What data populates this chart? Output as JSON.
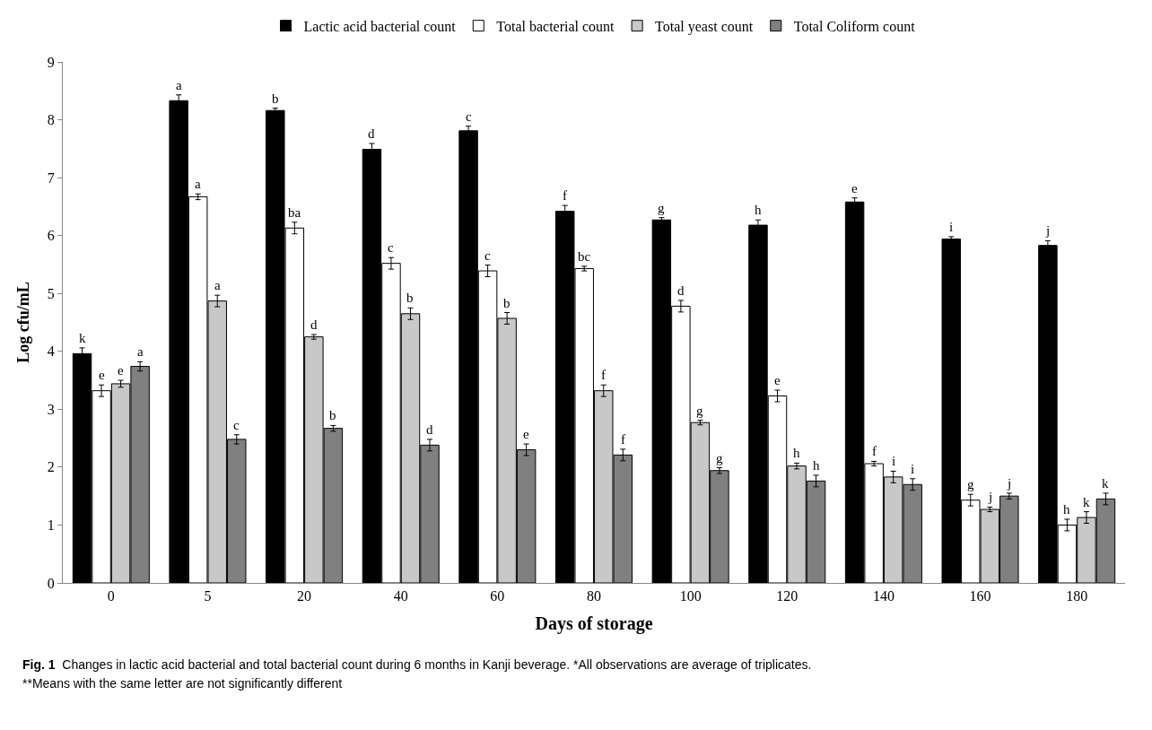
{
  "chart_data": {
    "type": "bar",
    "xlabel": "Days of storage",
    "ylabel": "Log cfu/mL",
    "categories": [
      "0",
      "5",
      "20",
      "40",
      "60",
      "80",
      "100",
      "120",
      "140",
      "160",
      "180"
    ],
    "series": [
      {
        "name": "Lactic acid bacterial count",
        "color": "#000000",
        "values": [
          3.96,
          8.33,
          8.16,
          7.49,
          7.81,
          6.42,
          6.27,
          6.18,
          6.58,
          5.94,
          5.83
        ],
        "errors": [
          0.1,
          0.1,
          0.04,
          0.1,
          0.08,
          0.1,
          0.04,
          0.09,
          0.07,
          0.04,
          0.08
        ],
        "value_labels": [
          "k",
          "a",
          "b",
          "d",
          "c",
          "f",
          "g",
          "h",
          "e",
          "i",
          "j"
        ]
      },
      {
        "name": "Total bacterial count",
        "color": "#ffffff",
        "values": [
          3.32,
          6.67,
          6.13,
          5.52,
          5.39,
          5.43,
          4.78,
          3.23,
          2.06,
          1.43,
          1.0
        ],
        "errors": [
          0.1,
          0.05,
          0.1,
          0.1,
          0.1,
          0.04,
          0.1,
          0.1,
          0.04,
          0.1,
          0.1
        ],
        "value_labels": [
          "e",
          "a",
          "ba",
          "c",
          "c",
          "bc",
          "d",
          "e",
          "f",
          "g",
          "h"
        ]
      },
      {
        "name": "Total yeast count",
        "color": "#c8c8c8",
        "values": [
          3.44,
          4.87,
          4.25,
          4.65,
          4.57,
          3.32,
          2.77,
          2.02,
          1.83,
          1.27,
          1.13
        ],
        "errors": [
          0.06,
          0.1,
          0.04,
          0.1,
          0.1,
          0.1,
          0.04,
          0.05,
          0.1,
          0.04,
          0.1
        ],
        "value_labels": [
          "e",
          "a",
          "d",
          "b",
          "b",
          "f",
          "g",
          "h",
          "i",
          "j",
          "k"
        ]
      },
      {
        "name": "Total Coliform count",
        "color": "#808080",
        "values": [
          3.74,
          2.48,
          2.67,
          2.38,
          2.3,
          2.21,
          1.94,
          1.76,
          1.7,
          1.5,
          1.45
        ],
        "errors": [
          0.08,
          0.08,
          0.05,
          0.1,
          0.1,
          0.1,
          0.05,
          0.1,
          0.1,
          0.05,
          0.1
        ],
        "value_labels": [
          "a",
          "c",
          "b",
          "d",
          "e",
          "f",
          "g",
          "h",
          "i",
          "j",
          "k"
        ]
      }
    ],
    "ylim": [
      0,
      9
    ],
    "yticks": [
      0,
      1,
      2,
      3,
      4,
      5,
      6,
      7,
      8,
      9
    ],
    "legend": "top",
    "annotations": [
      "Fig. 1  Changes in lactic acid bacterial and total bacterial count during 6 months in Kanji beverage. *All observations are average of triplicates.",
      "**Means with the same letter are not significantly different"
    ]
  }
}
